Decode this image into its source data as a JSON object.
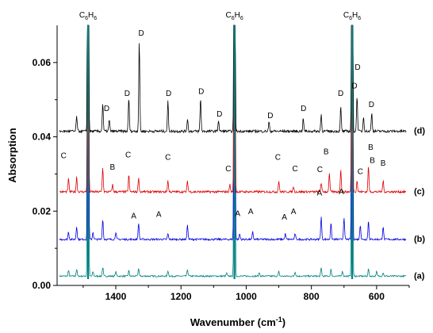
{
  "chart_data": {
    "type": "line",
    "title": "",
    "xlabel": "Wavenumber (cm",
    "xlabel_sup": "-1",
    "xlabel_close": ")",
    "ylabel": "Absorption",
    "xlim": [
      1580,
      500
    ],
    "ylim": [
      0.0,
      0.07
    ],
    "x_reversed": true,
    "xticks": [
      1400,
      1200,
      1000,
      800,
      600
    ],
    "yticks": [
      0.0,
      0.02,
      0.04,
      0.06
    ],
    "ytick_labels": [
      "0.00",
      "0.02",
      "0.04",
      "0.06"
    ],
    "grid": false,
    "strong_bands": [
      {
        "x": 1485,
        "label_main": "C",
        "label_sub1": "6",
        "label_mid": "H",
        "label_sub2": "6"
      },
      {
        "x": 1036,
        "label_main": "C",
        "label_sub1": "6",
        "label_mid": "H",
        "label_sub2": "6"
      },
      {
        "x": 675,
        "label_main": "C",
        "label_sub1": "6",
        "label_mid": "H",
        "label_sub2": "6"
      }
    ],
    "series": [
      {
        "name": "(a)",
        "color": "#008080",
        "baseline": 0.0025,
        "noise": 0.0004,
        "peaks": [
          [
            1545,
            0.0015
          ],
          [
            1520,
            0.0018
          ],
          [
            1470,
            0.0012
          ],
          [
            1440,
            0.0024
          ],
          [
            1400,
            0.0012
          ],
          [
            1360,
            0.0015
          ],
          [
            1330,
            0.0022
          ],
          [
            1240,
            0.0015
          ],
          [
            1180,
            0.0018
          ],
          [
            1060,
            0.0008
          ],
          [
            960,
            0.001
          ],
          [
            900,
            0.0012
          ],
          [
            850,
            0.0012
          ],
          [
            770,
            0.0022
          ],
          [
            740,
            0.0018
          ],
          [
            705,
            0.0015
          ],
          [
            625,
            0.002
          ],
          [
            600,
            0.0012
          ],
          [
            580,
            0.001
          ]
        ]
      },
      {
        "name": "(b)",
        "color": "#0000dd",
        "baseline": 0.0124,
        "noise": 0.0005,
        "peaks": [
          [
            1545,
            0.002
          ],
          [
            1520,
            0.0035
          ],
          [
            1470,
            0.002
          ],
          [
            1440,
            0.0055
          ],
          [
            1400,
            0.002
          ],
          [
            1330,
            0.0045
          ],
          [
            1240,
            0.0015
          ],
          [
            1180,
            0.004
          ],
          [
            1020,
            0.0015
          ],
          [
            980,
            0.002
          ],
          [
            880,
            0.0015
          ],
          [
            850,
            0.0015
          ],
          [
            770,
            0.006
          ],
          [
            740,
            0.0045
          ],
          [
            700,
            0.006
          ],
          [
            650,
            0.004
          ],
          [
            625,
            0.005
          ],
          [
            580,
            0.0035
          ]
        ]
      },
      {
        "name": "(c)",
        "color": "#dd0000",
        "baseline": 0.0252,
        "noise": 0.0006,
        "peaks": [
          [
            1545,
            0.0035
          ],
          [
            1520,
            0.004
          ],
          [
            1440,
            0.0065
          ],
          [
            1410,
            0.002
          ],
          [
            1360,
            0.0045
          ],
          [
            1330,
            0.004
          ],
          [
            1240,
            0.003
          ],
          [
            1180,
            0.003
          ],
          [
            1050,
            0.002
          ],
          [
            900,
            0.003
          ],
          [
            855,
            0.0015
          ],
          [
            770,
            0.0025
          ],
          [
            745,
            0.005
          ],
          [
            710,
            0.006
          ],
          [
            660,
            0.003
          ],
          [
            625,
            0.007
          ],
          [
            580,
            0.003
          ]
        ]
      },
      {
        "name": "(d)",
        "color": "#000000",
        "baseline": 0.0415,
        "noise": 0.0007,
        "peaks": [
          [
            1520,
            0.004
          ],
          [
            1440,
            0.0075
          ],
          [
            1420,
            0.003
          ],
          [
            1360,
            0.009
          ],
          [
            1328,
            0.0245
          ],
          [
            1240,
            0.008
          ],
          [
            1180,
            0.0035
          ],
          [
            1140,
            0.009
          ],
          [
            1085,
            0.003
          ],
          [
            930,
            0.0025
          ],
          [
            825,
            0.0035
          ],
          [
            770,
            0.0045
          ],
          [
            710,
            0.0065
          ],
          [
            660,
            0.0095
          ],
          [
            640,
            0.004
          ],
          [
            615,
            0.005
          ]
        ]
      }
    ],
    "annotations": [
      {
        "text": "D",
        "x": 1322,
        "y": 0.0672
      },
      {
        "text": "D",
        "x": 1365,
        "y": 0.051
      },
      {
        "text": "D",
        "x": 1428,
        "y": 0.047
      },
      {
        "text": "D",
        "x": 1238,
        "y": 0.051
      },
      {
        "text": "D",
        "x": 1138,
        "y": 0.0515
      },
      {
        "text": "D",
        "x": 1082,
        "y": 0.0455
      },
      {
        "text": "D",
        "x": 926,
        "y": 0.045
      },
      {
        "text": "D",
        "x": 824,
        "y": 0.047
      },
      {
        "text": "D",
        "x": 710,
        "y": 0.051
      },
      {
        "text": "D",
        "x": 658,
        "y": 0.058
      },
      {
        "text": "D",
        "x": 668,
        "y": 0.053
      },
      {
        "text": "D",
        "x": 616,
        "y": 0.048
      },
      {
        "text": "C",
        "x": 1560,
        "y": 0.0343
      },
      {
        "text": "B",
        "x": 1410,
        "y": 0.0312
      },
      {
        "text": "C",
        "x": 1362,
        "y": 0.0345
      },
      {
        "text": "C",
        "x": 1240,
        "y": 0.0338
      },
      {
        "text": "C",
        "x": 1055,
        "y": 0.0307
      },
      {
        "text": "C",
        "x": 903,
        "y": 0.0338
      },
      {
        "text": "C",
        "x": 850,
        "y": 0.0307
      },
      {
        "text": "C",
        "x": 774,
        "y": 0.0305
      },
      {
        "text": "B",
        "x": 755,
        "y": 0.0353
      },
      {
        "text": "C",
        "x": 650,
        "y": 0.03
      },
      {
        "text": "B",
        "x": 618,
        "y": 0.0365
      },
      {
        "text": "B",
        "x": 613,
        "y": 0.033
      },
      {
        "text": "B",
        "x": 580,
        "y": 0.0322
      },
      {
        "text": "A",
        "x": 1345,
        "y": 0.018
      },
      {
        "text": "A",
        "x": 1268,
        "y": 0.0185
      },
      {
        "text": "A",
        "x": 1026,
        "y": 0.0187
      },
      {
        "text": "A",
        "x": 986,
        "y": 0.0192
      },
      {
        "text": "A",
        "x": 883,
        "y": 0.0177
      },
      {
        "text": "A",
        "x": 855,
        "y": 0.0192
      },
      {
        "text": "A",
        "x": 775,
        "y": 0.0242
      },
      {
        "text": "A",
        "x": 708,
        "y": 0.0245
      }
    ]
  }
}
